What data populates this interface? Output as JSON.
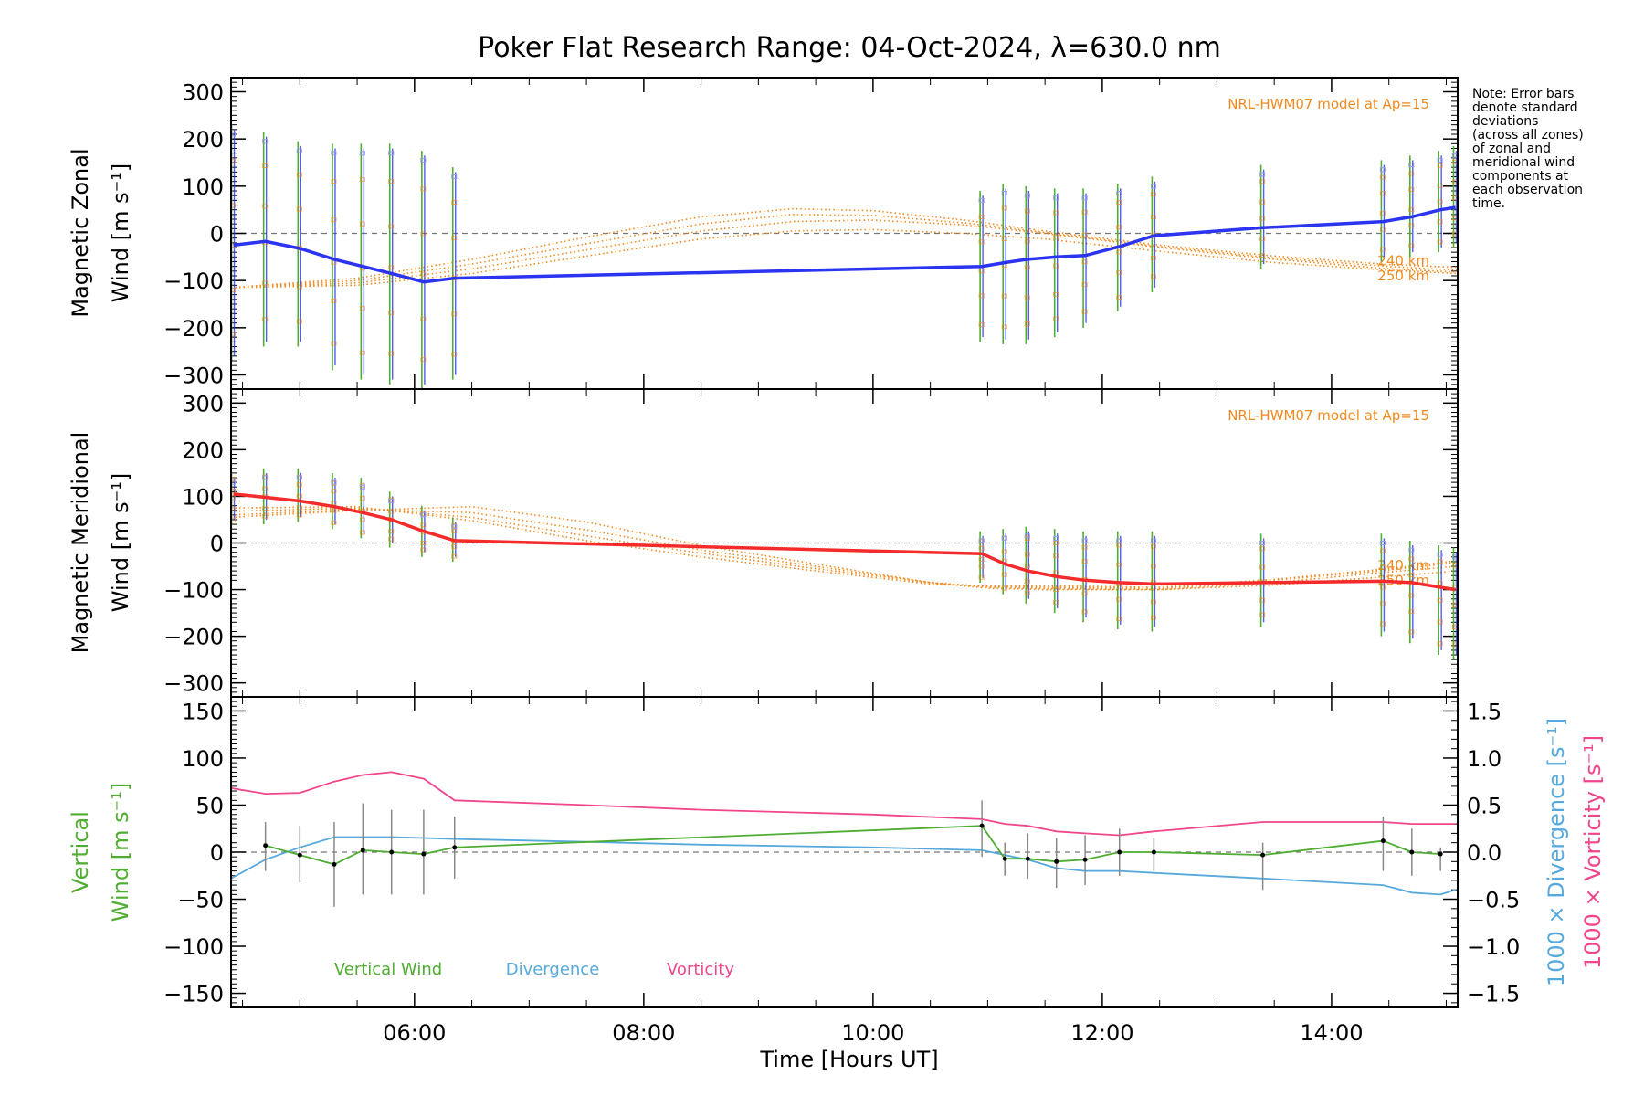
{
  "title": "Poker Flat Research Range: 04-Oct-2024, λ=630.0 nm",
  "note": [
    "Note: Error bars",
    "denote standard",
    "deviations",
    "(across all zones)",
    "of zonal and",
    "meridional wind",
    "components at",
    "each observation",
    "time."
  ],
  "colors": {
    "zonal": "#2b34f0",
    "meridional": "#f52a2a",
    "model": "#f28a1e",
    "vertical": "#4fad32",
    "divergence": "#56a9dc",
    "vorticity": "#f1468c",
    "errbar": "#888888"
  },
  "chart_data": [
    {
      "type": "line",
      "panel": "zonal",
      "ylabel_line1": "Magnetic Zonal",
      "ylabel_line2": "Wind [m s⁻¹]",
      "xlim": [
        4.4,
        15.1
      ],
      "ylim": [
        -330,
        330
      ],
      "yticks": [
        300,
        200,
        100,
        0,
        -100,
        -200,
        -300
      ],
      "model_label": "NRL-HWM07 model at Ap=15",
      "model_alt_labels": [
        "240 km",
        "250 km"
      ],
      "x": [
        4.42,
        4.7,
        5.0,
        5.3,
        5.55,
        5.8,
        6.08,
        6.35,
        10.95,
        11.15,
        11.35,
        11.6,
        11.85,
        12.15,
        12.45,
        13.4,
        14.45,
        14.7,
        14.95,
        15.08
      ],
      "values": [
        -25,
        -17,
        -32,
        -55,
        -70,
        -85,
        -103,
        -95,
        -70,
        -62,
        -55,
        -50,
        -47,
        -28,
        -5,
        12,
        25,
        35,
        50,
        55
      ],
      "err_lo": [
        -270,
        -240,
        -240,
        -290,
        -310,
        -320,
        -330,
        -310,
        -230,
        -235,
        -235,
        -220,
        -200,
        -165,
        -125,
        -75,
        -60,
        -50,
        -40,
        -30
      ],
      "err_hi": [
        230,
        215,
        195,
        190,
        190,
        190,
        175,
        140,
        90,
        105,
        100,
        95,
        95,
        105,
        120,
        145,
        155,
        165,
        175,
        185
      ],
      "models": [
        {
          "x": [
            4.4,
            5.5,
            6.5,
            7.5,
            8.5,
            9.3,
            10.0,
            10.8,
            11.5,
            12.5,
            13.5,
            14.5,
            15.1
          ],
          "values": [
            -115,
            -110,
            -85,
            -48,
            -12,
            5,
            8,
            0,
            -12,
            -38,
            -62,
            -78,
            -85
          ]
        },
        {
          "x": [
            4.4,
            5.5,
            6.5,
            7.5,
            8.5,
            9.3,
            10.0,
            10.8,
            11.5,
            12.5,
            13.5,
            14.5,
            15.1
          ],
          "values": [
            -115,
            -105,
            -75,
            -35,
            5,
            25,
            28,
            18,
            0,
            -30,
            -55,
            -75,
            -82
          ]
        },
        {
          "x": [
            4.4,
            5.5,
            6.5,
            7.5,
            8.5,
            9.3,
            10.0,
            10.8,
            11.5,
            12.5,
            13.5,
            14.5,
            15.1
          ],
          "values": [
            -115,
            -100,
            -65,
            -22,
            20,
            40,
            38,
            22,
            2,
            -28,
            -52,
            -70,
            -78
          ]
        },
        {
          "x": [
            4.4,
            5.5,
            6.5,
            7.5,
            8.5,
            9.3,
            10.0,
            10.8,
            11.5,
            12.5,
            13.5,
            14.5,
            15.1
          ],
          "values": [
            -115,
            -95,
            -55,
            -8,
            35,
            52,
            48,
            28,
            5,
            -25,
            -48,
            -66,
            -72
          ]
        }
      ]
    },
    {
      "type": "line",
      "panel": "meridional",
      "ylabel_line1": "Magnetic Meridional",
      "ylabel_line2": "Wind [m s⁻¹]",
      "xlim": [
        4.4,
        15.1
      ],
      "ylim": [
        -330,
        330
      ],
      "yticks": [
        300,
        200,
        100,
        0,
        -100,
        -200,
        -300
      ],
      "model_label": "NRL-HWM07 model at Ap=15",
      "model_alt_labels": [
        "240 km",
        "250 km"
      ],
      "x": [
        4.42,
        4.7,
        5.0,
        5.3,
        5.55,
        5.8,
        6.08,
        6.35,
        10.95,
        11.15,
        11.35,
        11.6,
        11.85,
        12.15,
        12.45,
        13.4,
        14.45,
        14.7,
        14.95,
        15.08
      ],
      "values": [
        105,
        98,
        90,
        78,
        65,
        50,
        25,
        5,
        -23,
        -45,
        -60,
        -72,
        -80,
        -85,
        -88,
        -85,
        -82,
        -85,
        -95,
        -100
      ],
      "err_lo": [
        40,
        40,
        45,
        30,
        10,
        -10,
        -30,
        -40,
        -85,
        -110,
        -130,
        -150,
        -170,
        -185,
        -190,
        -180,
        -200,
        -215,
        -240,
        -250
      ],
      "err_hi": [
        150,
        160,
        160,
        150,
        140,
        110,
        80,
        55,
        25,
        30,
        35,
        30,
        25,
        25,
        25,
        20,
        20,
        5,
        -5,
        -10
      ],
      "models": [
        {
          "x": [
            4.4,
            5.5,
            6.5,
            7.5,
            8.5,
            9.5,
            10.5,
            11.0,
            11.5,
            12.5,
            13.5,
            14.5,
            15.1
          ],
          "values": [
            55,
            70,
            78,
            45,
            -5,
            -45,
            -85,
            -97,
            -100,
            -100,
            -90,
            -72,
            -60
          ]
        },
        {
          "x": [
            4.4,
            5.5,
            6.5,
            7.5,
            8.5,
            9.5,
            10.5,
            11.0,
            11.5,
            12.5,
            13.5,
            14.5,
            15.1
          ],
          "values": [
            60,
            72,
            65,
            28,
            -15,
            -50,
            -85,
            -95,
            -98,
            -100,
            -85,
            -62,
            -50
          ]
        },
        {
          "x": [
            4.4,
            5.5,
            6.5,
            7.5,
            8.5,
            9.5,
            10.5,
            11.0,
            11.5,
            12.5,
            13.5,
            14.5,
            15.1
          ],
          "values": [
            68,
            75,
            55,
            15,
            -22,
            -55,
            -85,
            -93,
            -95,
            -98,
            -80,
            -58,
            -42
          ]
        },
        {
          "x": [
            4.4,
            5.5,
            6.5,
            7.5,
            8.5,
            9.5,
            10.5,
            11.0,
            11.5,
            12.5,
            13.5,
            14.5,
            15.1
          ],
          "values": [
            75,
            78,
            48,
            5,
            -30,
            -60,
            -88,
            -92,
            -92,
            -95,
            -78,
            -55,
            -38
          ]
        }
      ]
    },
    {
      "type": "line",
      "panel": "vertical",
      "ylabel_line1": "Vertical",
      "ylabel_line2": "Wind [m s⁻¹]",
      "right_label_div": "1000 × Divergence [s⁻¹]",
      "right_label_vort": "1000 × Vorticity [s⁻¹]",
      "xlabel": "Time [Hours UT]",
      "xticks": [
        6,
        8,
        10,
        12,
        14
      ],
      "xtick_labels": [
        "06:00",
        "08:00",
        "10:00",
        "12:00",
        "14:00"
      ],
      "xlim": [
        4.4,
        15.1
      ],
      "ylim": [
        -165,
        165
      ],
      "yticks": [
        150,
        100,
        50,
        0,
        -50,
        -100,
        -150
      ],
      "y2lim": [
        -1.65,
        1.65
      ],
      "y2ticks": [
        1.5,
        1.0,
        0.5,
        0.0,
        -0.5,
        -1.0,
        -1.5
      ],
      "legend": [
        "Vertical Wind",
        "Divergence",
        "Vorticity"
      ],
      "series": [
        {
          "name": "Vertical Wind",
          "x": [
            4.7,
            5.0,
            5.3,
            5.55,
            5.8,
            6.08,
            6.35,
            10.95,
            11.15,
            11.35,
            11.6,
            11.85,
            12.15,
            12.45,
            13.4,
            14.45,
            14.7,
            14.95
          ],
          "values": [
            7,
            -3,
            -13,
            2,
            0,
            -2,
            5,
            28,
            -7,
            -7,
            -10,
            -8,
            0,
            0,
            -3,
            12,
            0,
            -2
          ],
          "err_lo": [
            -20,
            -32,
            -58,
            -45,
            -45,
            -45,
            -28,
            -5,
            -25,
            -28,
            -38,
            -35,
            -25,
            -20,
            -40,
            -20,
            -25,
            -20
          ],
          "err_hi": [
            32,
            28,
            32,
            52,
            45,
            45,
            38,
            55,
            10,
            20,
            15,
            18,
            25,
            15,
            10,
            38,
            25,
            5
          ]
        },
        {
          "name": "Divergence",
          "x": [
            4.4,
            4.7,
            5.0,
            5.3,
            5.55,
            5.8,
            6.08,
            6.35,
            7.5,
            8.5,
            10.0,
            10.95,
            11.15,
            11.35,
            11.6,
            11.85,
            12.15,
            12.45,
            13.4,
            14.45,
            14.7,
            14.95,
            15.08
          ],
          "values": [
            -0.28,
            -0.08,
            0.05,
            0.16,
            0.16,
            0.16,
            0.15,
            0.14,
            0.11,
            0.08,
            0.05,
            0.02,
            -0.03,
            -0.08,
            -0.17,
            -0.2,
            -0.2,
            -0.22,
            -0.28,
            -0.35,
            -0.43,
            -0.45,
            -0.4
          ]
        },
        {
          "name": "Vorticity",
          "x": [
            4.4,
            4.7,
            5.0,
            5.3,
            5.55,
            5.8,
            6.08,
            6.35,
            7.5,
            8.5,
            10.0,
            10.95,
            11.15,
            11.35,
            11.6,
            11.85,
            12.15,
            12.45,
            13.4,
            14.45,
            14.7,
            14.95,
            15.08
          ],
          "values": [
            0.68,
            0.62,
            0.63,
            0.75,
            0.82,
            0.85,
            0.78,
            0.55,
            0.5,
            0.45,
            0.4,
            0.35,
            0.3,
            0.28,
            0.22,
            0.2,
            0.18,
            0.22,
            0.32,
            0.32,
            0.3,
            0.3,
            0.3
          ]
        }
      ]
    }
  ]
}
